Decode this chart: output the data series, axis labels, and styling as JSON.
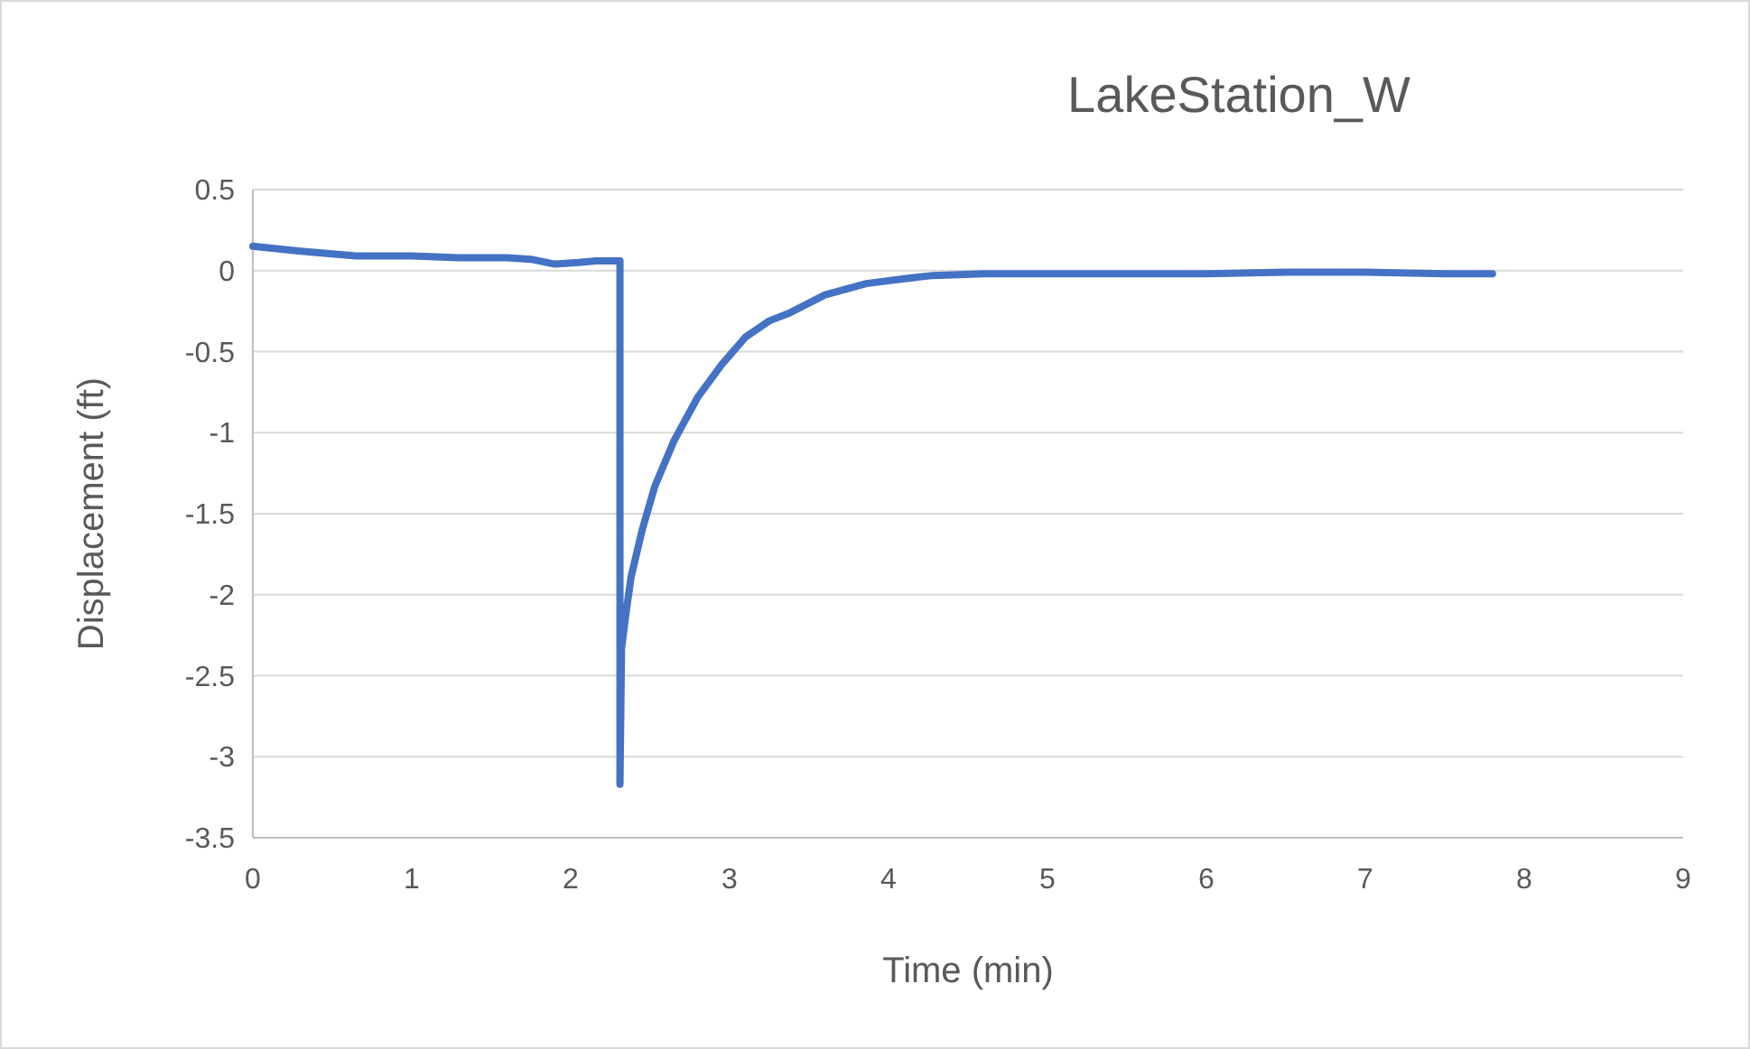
{
  "chart_data": {
    "type": "line",
    "title": "LakeStation_W",
    "xlabel": "Time (min)",
    "ylabel": "Displacement (ft)",
    "xlim": [
      0,
      9
    ],
    "xticks": [
      0,
      1,
      2,
      3,
      4,
      5,
      6,
      7,
      8,
      9
    ],
    "ylim": [
      -3.5,
      0.5
    ],
    "yticks": [
      -3.5,
      -3,
      -2.5,
      -2,
      -1.5,
      -1,
      -0.5,
      0,
      0.5
    ],
    "grid": "y",
    "marker": "none",
    "line_style": "solid",
    "series": [
      {
        "color": "#4472c4",
        "x": [
          0,
          0.3,
          0.65,
          1.0,
          1.3,
          1.6,
          1.75,
          1.9,
          2.05,
          2.16,
          2.31,
          2.31,
          2.32,
          2.35,
          2.38,
          2.45,
          2.53,
          2.65,
          2.8,
          2.95,
          3.1,
          3.25,
          3.38,
          3.6,
          3.86,
          4.1,
          4.28,
          4.6,
          5,
          5.5,
          6,
          6.5,
          7,
          7.5,
          7.8
        ],
        "values": [
          0.15,
          0.12,
          0.09,
          0.09,
          0.08,
          0.08,
          0.07,
          0.04,
          0.05,
          0.06,
          0.06,
          -3.17,
          -2.33,
          -2.1,
          -1.89,
          -1.6,
          -1.33,
          -1.05,
          -0.78,
          -0.58,
          -0.41,
          -0.31,
          -0.26,
          -0.15,
          -0.08,
          -0.05,
          -0.03,
          -0.02,
          -0.02,
          -0.02,
          -0.02,
          -0.01,
          -0.01,
          -0.02,
          -0.02
        ]
      }
    ]
  }
}
